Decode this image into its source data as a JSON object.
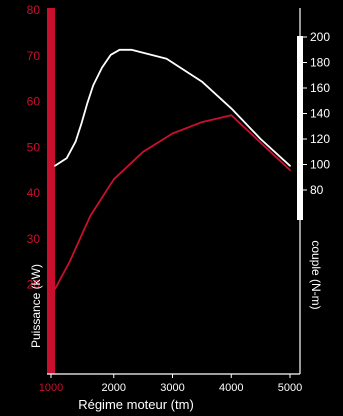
{
  "chart_data": {
    "type": "line",
    "xlabel": "Régime moteur (tm)",
    "ylabel_left": "Puissance (kW)",
    "ylabel_right": "couple (N-m)",
    "x_ticks": [
      "1000",
      "2000",
      "3000",
      "4000",
      "5000"
    ],
    "y_left_ticks": [
      "20",
      "30",
      "40",
      "50",
      "60",
      "70",
      "80"
    ],
    "y_right_ticks": [
      "80",
      "100",
      "120",
      "140",
      "160",
      "180",
      "200"
    ],
    "xlim": [
      1000,
      5000
    ],
    "ylim_left": [
      10,
      80
    ],
    "ylim_right": [
      80,
      200
    ],
    "grid": false,
    "colors": {
      "background": "#000000",
      "power": "#c8102e",
      "torque": "#ffffff",
      "left_axis": "#c8102e",
      "right_axis": "#ffffff"
    },
    "series": [
      {
        "axis": "left",
        "color": "#c8102e",
        "points": [
          [
            1000,
            19
          ],
          [
            1250,
            25
          ],
          [
            1600,
            35
          ],
          [
            2000,
            43
          ],
          [
            2500,
            49
          ],
          [
            3000,
            53
          ],
          [
            3500,
            55.5
          ],
          [
            4000,
            57
          ],
          [
            4500,
            51
          ],
          [
            5000,
            45
          ]
        ]
      },
      {
        "axis": "right",
        "color": "#ffffff",
        "points": [
          [
            1000,
            99
          ],
          [
            1200,
            105
          ],
          [
            1350,
            118
          ],
          [
            1450,
            132
          ],
          [
            1550,
            148
          ],
          [
            1650,
            162
          ],
          [
            1800,
            176
          ],
          [
            1950,
            186
          ],
          [
            2100,
            190
          ],
          [
            2300,
            190
          ],
          [
            2900,
            183
          ],
          [
            3500,
            165
          ],
          [
            4000,
            144
          ],
          [
            4500,
            120
          ],
          [
            5000,
            99
          ]
        ]
      }
    ]
  }
}
